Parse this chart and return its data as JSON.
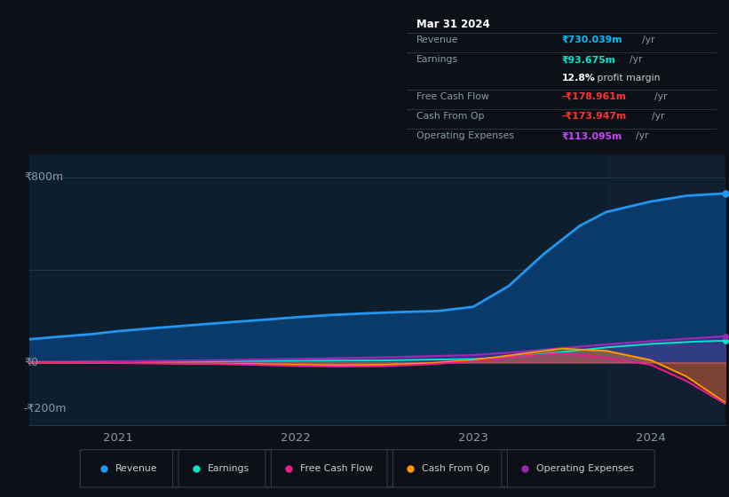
{
  "bg_color": "#0d1117",
  "plot_bg_color": "#0d1f2d",
  "highlight_bg_color": "#102030",
  "grid_color": "#1e3a4a",
  "zero_line_color": "#ffffff",
  "title_date": "Mar 31 2024",
  "tooltip_bg": "#080c10",
  "tooltip_border": "#2a3a4a",
  "tooltip": {
    "Revenue": {
      "label": "Revenue",
      "value": "₹730.039m",
      "unit": " /yr",
      "color": "#00bfff"
    },
    "Earnings": {
      "label": "Earnings",
      "value": "₹93.675m",
      "unit": " /yr",
      "color": "#00e5cc"
    },
    "profit_margin": "12.8%",
    "Free Cash Flow": {
      "label": "Free Cash Flow",
      "value": "-₹178.961m",
      "unit": " /yr",
      "color": "#ff3333"
    },
    "Cash From Op": {
      "label": "Cash From Op",
      "value": "-₹173.947m",
      "unit": " /yr",
      "color": "#ff3333"
    },
    "Operating Expenses": {
      "label": "Operating Expenses",
      "value": "₹113.095m",
      "unit": " /yr",
      "color": "#cc44ff"
    }
  },
  "ylim": [
    -270,
    900
  ],
  "xlim": [
    2020.5,
    2024.42
  ],
  "highlight_x_start": 2023.75,
  "legend": [
    {
      "label": "Revenue",
      "color": "#2196f3"
    },
    {
      "label": "Earnings",
      "color": "#00e5cc"
    },
    {
      "label": "Free Cash Flow",
      "color": "#e91e8c"
    },
    {
      "label": "Cash From Op",
      "color": "#ff9800"
    },
    {
      "label": "Operating Expenses",
      "color": "#9c27b0"
    }
  ],
  "revenue_x": [
    2020.5,
    2020.65,
    2020.85,
    2021.0,
    2021.2,
    2021.4,
    2021.6,
    2021.8,
    2022.0,
    2022.2,
    2022.4,
    2022.6,
    2022.8,
    2023.0,
    2023.2,
    2023.4,
    2023.6,
    2023.75,
    2024.0,
    2024.2,
    2024.42
  ],
  "revenue_y": [
    100,
    110,
    122,
    135,
    148,
    160,
    172,
    183,
    195,
    205,
    212,
    218,
    222,
    240,
    330,
    470,
    590,
    650,
    695,
    720,
    730
  ],
  "earnings_x": [
    2020.5,
    2020.75,
    2021.0,
    2021.5,
    2022.0,
    2022.5,
    2023.0,
    2023.25,
    2023.5,
    2023.75,
    2024.0,
    2024.25,
    2024.42
  ],
  "earnings_y": [
    1,
    2,
    3,
    5,
    7,
    9,
    15,
    25,
    45,
    65,
    80,
    90,
    94
  ],
  "fcf_x": [
    2020.5,
    2020.75,
    2021.0,
    2021.25,
    2021.5,
    2021.75,
    2022.0,
    2022.25,
    2022.5,
    2022.75,
    2023.0,
    2023.25,
    2023.5,
    2023.75,
    2024.0,
    2024.2,
    2024.42
  ],
  "fcf_y": [
    0,
    -1,
    -2,
    -4,
    -6,
    -10,
    -15,
    -18,
    -16,
    -8,
    5,
    25,
    40,
    20,
    -10,
    -80,
    -179
  ],
  "cfop_x": [
    2020.5,
    2020.75,
    2021.0,
    2021.25,
    2021.5,
    2021.75,
    2022.0,
    2022.25,
    2022.5,
    2022.75,
    2023.0,
    2023.25,
    2023.5,
    2023.75,
    2024.0,
    2024.2,
    2024.42
  ],
  "cfop_y": [
    0,
    -1,
    -2,
    -3,
    -5,
    -7,
    -10,
    -12,
    -10,
    -3,
    10,
    35,
    60,
    50,
    10,
    -60,
    -174
  ],
  "opex_x": [
    2020.5,
    2020.75,
    2021.0,
    2021.5,
    2022.0,
    2022.5,
    2023.0,
    2023.25,
    2023.5,
    2023.75,
    2024.0,
    2024.25,
    2024.42
  ],
  "opex_y": [
    2,
    3,
    5,
    9,
    15,
    22,
    32,
    45,
    62,
    78,
    92,
    105,
    113
  ]
}
